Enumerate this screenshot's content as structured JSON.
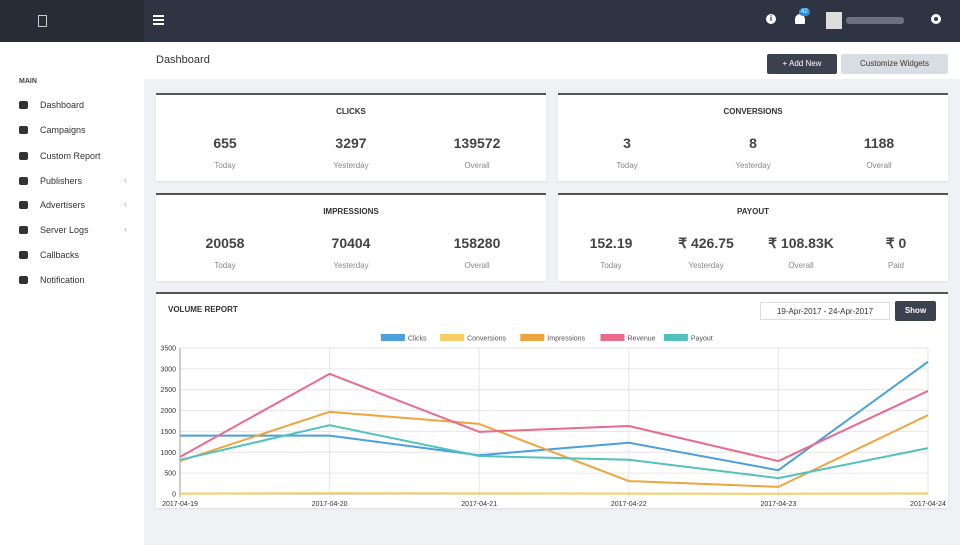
{
  "navbar": {
    "notification_count": "42"
  },
  "sidebar": {
    "section": "MAIN",
    "items": [
      "Dashboard",
      "Campaigns",
      "Custom Report",
      "Publishers",
      "Advertisers",
      "Server Logs",
      "Callbacks",
      "Notification"
    ]
  },
  "header": {
    "title": "Dashboard",
    "buttons": [
      "+ Add New",
      "Customize Widgets"
    ]
  },
  "cards": [
    {
      "title": "CLICKS",
      "stats": [
        {
          "value": "655",
          "label": "Today"
        },
        {
          "value": "3297",
          "label": "Yesterday"
        },
        {
          "value": "139572",
          "label": "Overall"
        }
      ]
    },
    {
      "title": "CONVERSIONS",
      "stats": [
        {
          "value": "3",
          "label": "Today"
        },
        {
          "value": "8",
          "label": "Yesterday"
        },
        {
          "value": "1188",
          "label": "Overall"
        }
      ]
    },
    {
      "title": "IMPRESSIONS",
      "stats": [
        {
          "value": "20058",
          "label": "Today"
        },
        {
          "value": "70404",
          "label": "Yesterday"
        },
        {
          "value": "158280",
          "label": "Overall"
        }
      ]
    },
    {
      "title": "PAYOUT",
      "stats": [
        {
          "value": "152.19",
          "label": "Today"
        },
        {
          "value": "₹ 426.75",
          "label": "Yesterday"
        },
        {
          "value": "₹ 108.83K",
          "label": "Overall"
        },
        {
          "value": "₹ 0",
          "label": "Paid"
        }
      ]
    }
  ],
  "volume_report": {
    "title": "VOLUME REPORT",
    "date_range": "19-Apr-2017 - 24-Apr-2017",
    "button": "Show"
  },
  "chart_data": {
    "type": "line",
    "categories": [
      "2017-04-19",
      "2017-04-20",
      "2017-04-21",
      "2017-04-22",
      "2017-04-23",
      "2017-04-24"
    ],
    "series": [
      {
        "name": "Clicks",
        "color": "#4a9fdc",
        "values": [
          1400,
          1400,
          930,
          1230,
          570,
          3170
        ]
      },
      {
        "name": "Conversions",
        "color": "#f5cf63",
        "values": [
          10,
          20,
          15,
          10,
          5,
          15
        ]
      },
      {
        "name": "Impressions",
        "color": "#efa53f",
        "values": [
          790,
          1970,
          1680,
          310,
          170,
          1890
        ]
      },
      {
        "name": "Revenue",
        "color": "#ea6b8d",
        "values": [
          890,
          2880,
          1490,
          1630,
          790,
          2470
        ]
      },
      {
        "name": "Payout",
        "color": "#52c2bd",
        "values": [
          820,
          1650,
          910,
          820,
          380,
          1100
        ]
      }
    ],
    "ylim": [
      0,
      3500
    ],
    "yticks": [
      0,
      500,
      1000,
      1500,
      2000,
      2500,
      3000,
      3500
    ],
    "grid": true
  }
}
